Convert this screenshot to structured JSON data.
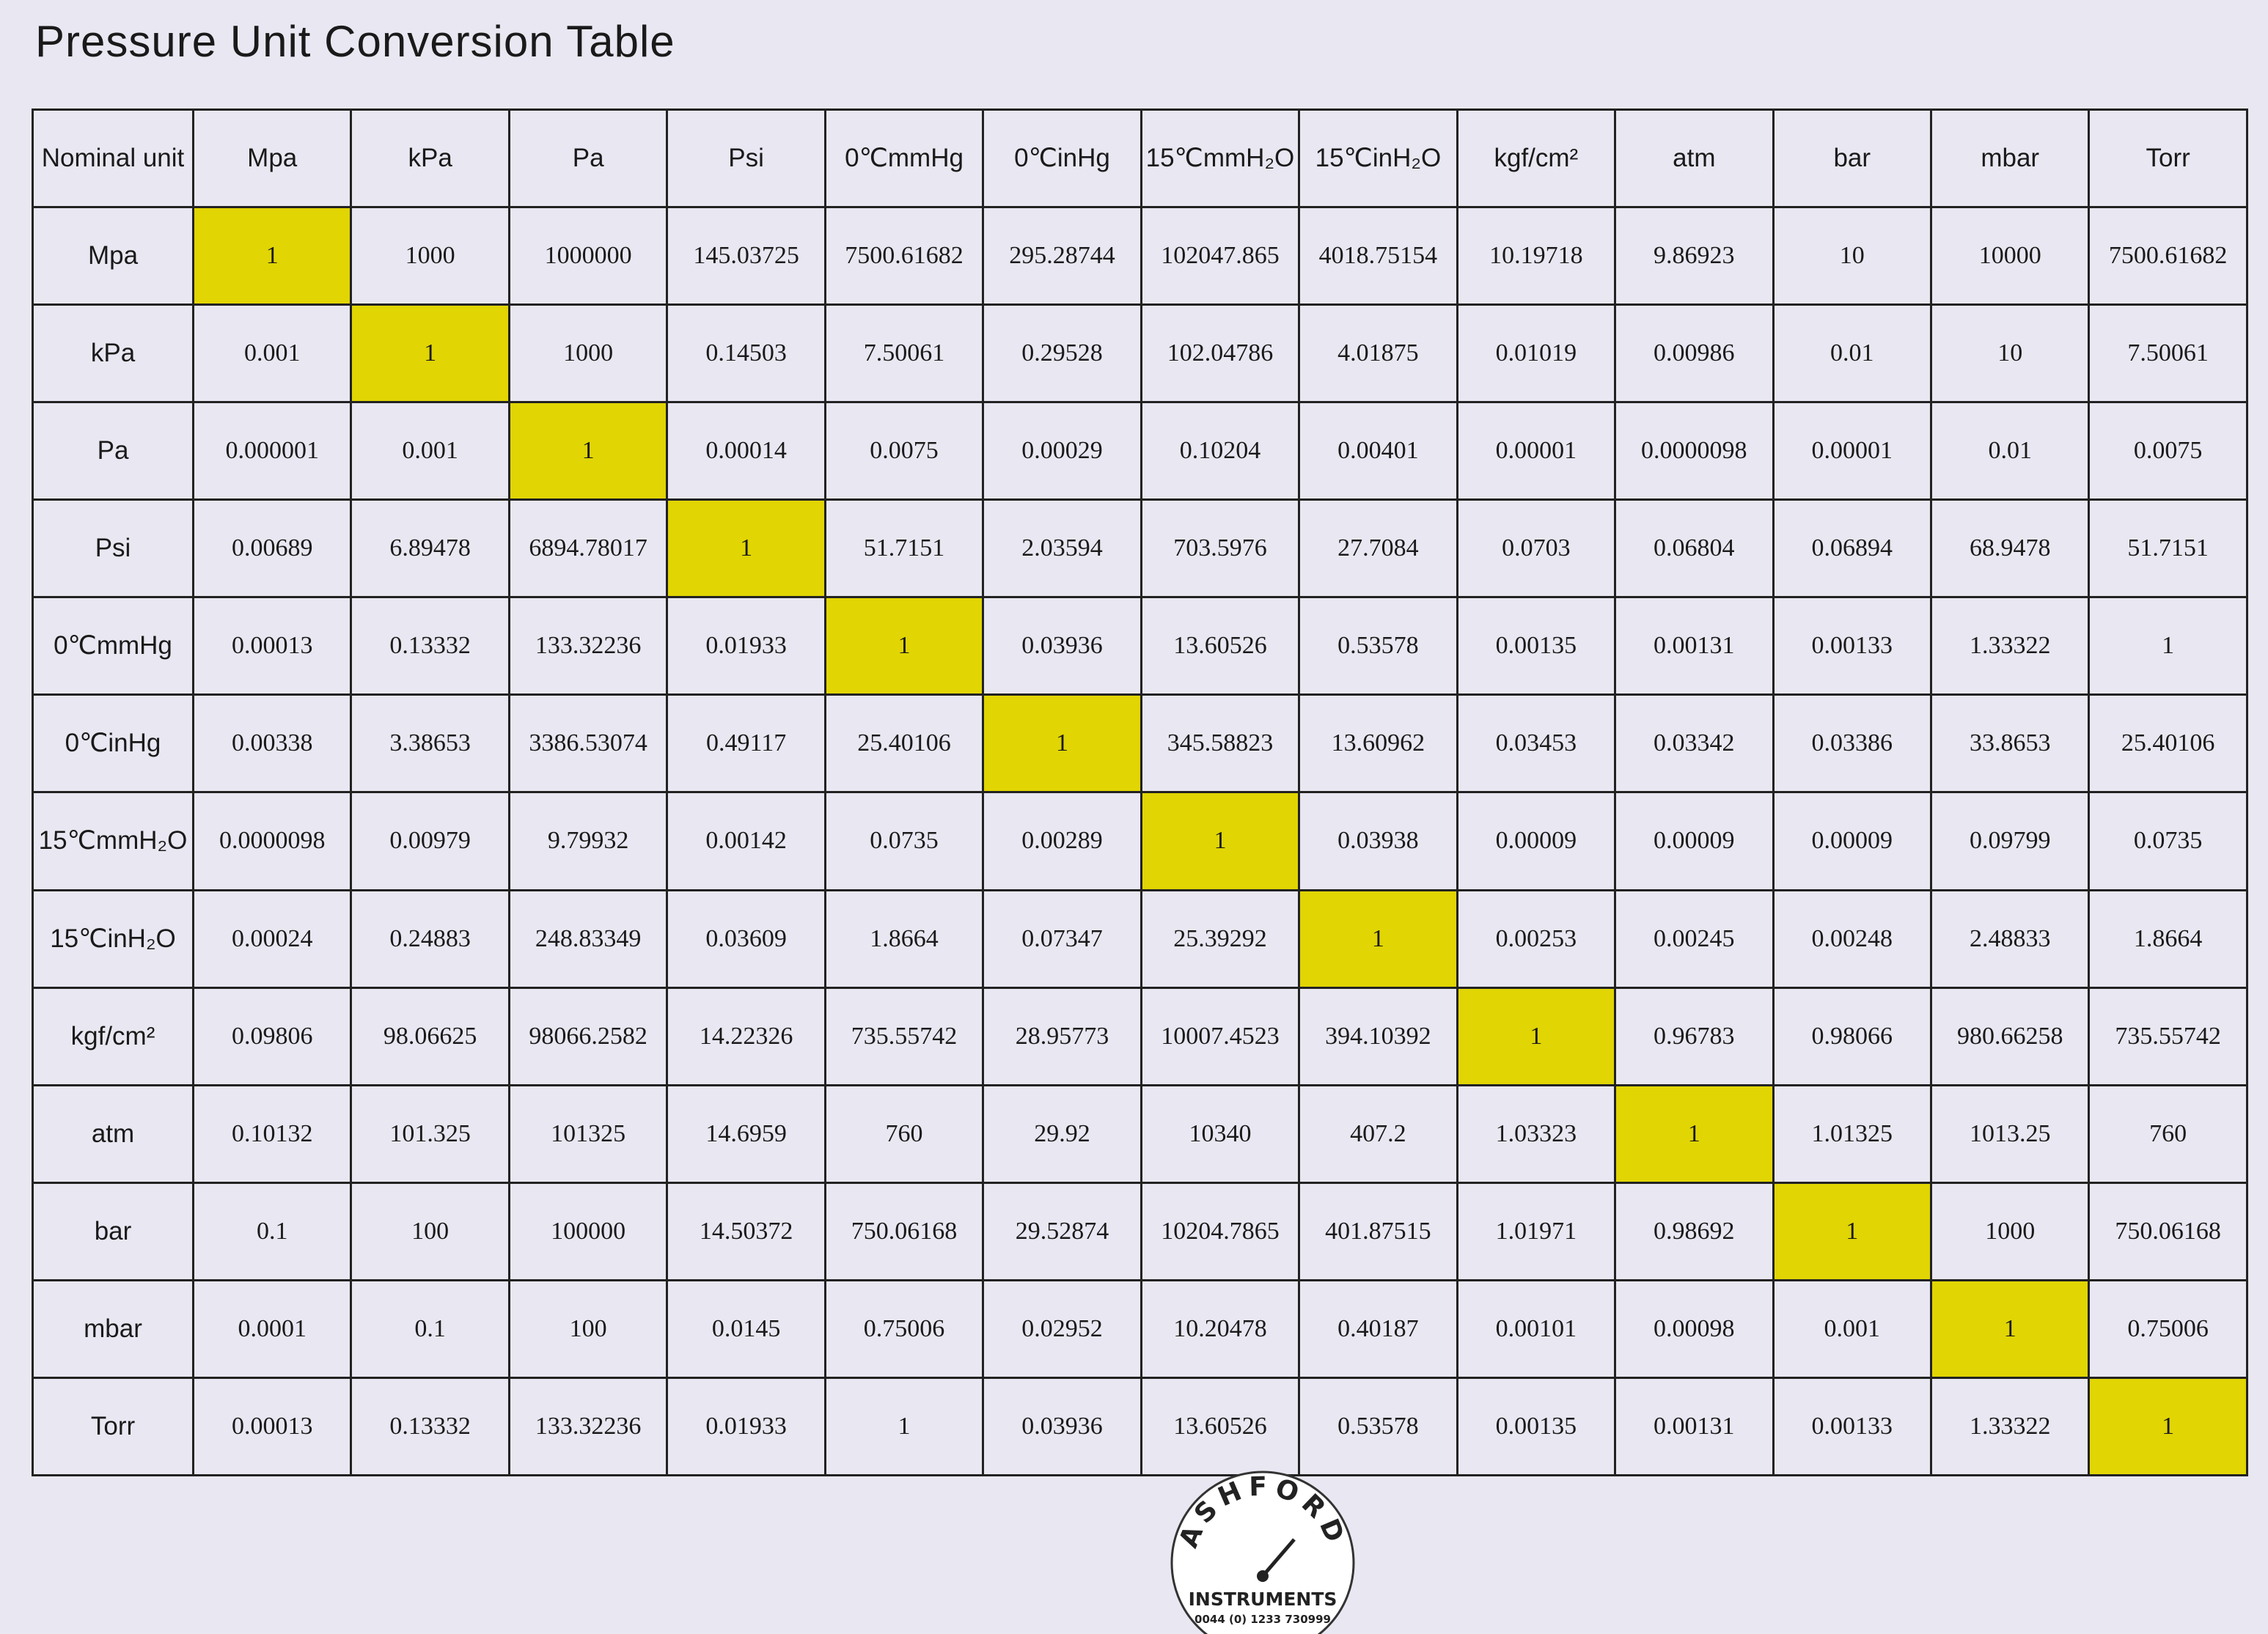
{
  "header": {
    "title": "Pressure  Unit  Conversion Table"
  },
  "table": {
    "header": [
      "Nominal unit",
      "Mpa",
      "kPa",
      "Pa",
      "Psi",
      "0℃mmHg",
      "0℃inHg",
      "15℃mmH₂O",
      "15℃inH₂O",
      "kgf/cm²",
      "atm",
      "bar",
      "mbar",
      "Torr"
    ],
    "rows": [
      [
        "Mpa",
        "1",
        "1000",
        "1000000",
        "145.03725",
        "7500.61682",
        "295.28744",
        "102047.865",
        "4018.75154",
        "10.19718",
        "9.86923",
        "10",
        "10000",
        "7500.61682"
      ],
      [
        "kPa",
        "0.001",
        "1",
        "1000",
        "0.14503",
        "7.50061",
        "0.29528",
        "102.04786",
        "4.01875",
        "0.01019",
        "0.00986",
        "0.01",
        "10",
        "7.50061"
      ],
      [
        "Pa",
        "0.000001",
        "0.001",
        "1",
        "0.00014",
        "0.0075",
        "0.00029",
        "0.10204",
        "0.00401",
        "0.00001",
        "0.0000098",
        "0.00001",
        "0.01",
        "0.0075"
      ],
      [
        "Psi",
        "0.00689",
        "6.89478",
        "6894.78017",
        "1",
        "51.7151",
        "2.03594",
        "703.5976",
        "27.7084",
        "0.0703",
        "0.06804",
        "0.06894",
        "68.9478",
        "51.7151"
      ],
      [
        "0℃mmHg",
        "0.00013",
        "0.13332",
        "133.32236",
        "0.01933",
        "1",
        "0.03936",
        "13.60526",
        "0.53578",
        "0.00135",
        "0.00131",
        "0.00133",
        "1.33322",
        "1"
      ],
      [
        "0℃inHg",
        "0.00338",
        "3.38653",
        "3386.53074",
        "0.49117",
        "25.40106",
        "1",
        "345.58823",
        "13.60962",
        "0.03453",
        "0.03342",
        "0.03386",
        "33.8653",
        "25.40106"
      ],
      [
        "15℃mmH₂O",
        "0.0000098",
        "0.00979",
        "9.79932",
        "0.00142",
        "0.0735",
        "0.00289",
        "1",
        "0.03938",
        "0.00009",
        "0.00009",
        "0.00009",
        "0.09799",
        "0.0735"
      ],
      [
        "15℃inH₂O",
        "0.00024",
        "0.24883",
        "248.83349",
        "0.03609",
        "1.8664",
        "0.07347",
        "25.39292",
        "1",
        "0.00253",
        "0.00245",
        "0.00248",
        "2.48833",
        "1.8664"
      ],
      [
        "kgf/cm²",
        "0.09806",
        "98.06625",
        "98066.2582",
        "14.22326",
        "735.55742",
        "28.95773",
        "10007.4523",
        "394.10392",
        "1",
        "0.96783",
        "0.98066",
        "980.66258",
        "735.55742"
      ],
      [
        "atm",
        "0.10132",
        "101.325",
        "101325",
        "14.6959",
        "760",
        "29.92",
        "10340",
        "407.2",
        "1.03323",
        "1",
        "1.01325",
        "1013.25",
        "760"
      ],
      [
        "bar",
        "0.1",
        "100",
        "100000",
        "14.50372",
        "750.06168",
        "29.52874",
        "10204.7865",
        "401.87515",
        "1.01971",
        "0.98692",
        "1",
        "1000",
        "750.06168"
      ],
      [
        "mbar",
        "0.0001",
        "0.1",
        "100",
        "0.0145",
        "0.75006",
        "0.02952",
        "10.20478",
        "0.40187",
        "0.00101",
        "0.00098",
        "0.001",
        "1",
        "0.75006"
      ],
      [
        "Torr",
        "0.00013",
        "0.13332",
        "133.32236",
        "0.01933",
        "1",
        "0.03936",
        "13.60526",
        "0.53578",
        "0.00135",
        "0.00131",
        "0.00133",
        "1.33322",
        "1"
      ]
    ]
  },
  "logo": {
    "brand": "ASHFORD",
    "name": "INSTRUMENTS",
    "phone": "0044 (0) 1233 730999"
  }
}
